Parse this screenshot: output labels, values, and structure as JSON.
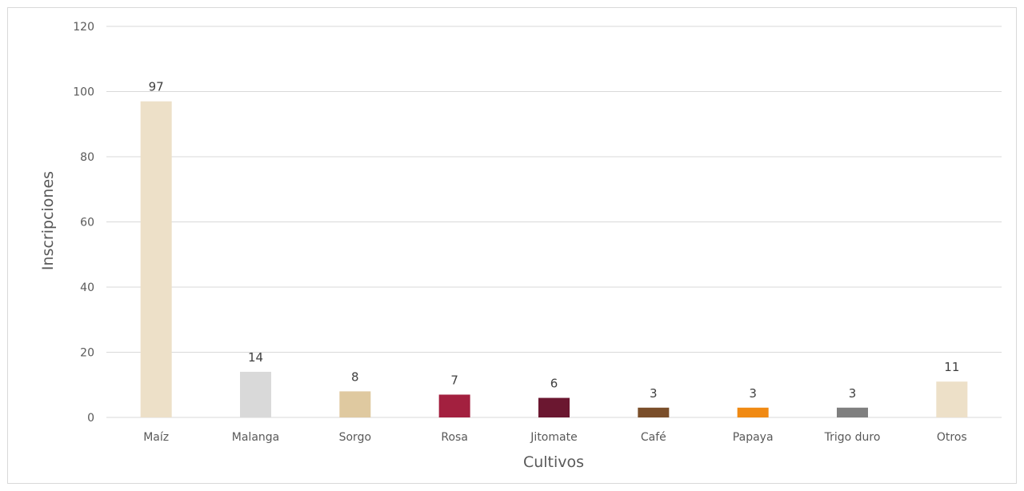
{
  "chart_data": {
    "type": "bar",
    "xlabel": "Cultivos",
    "ylabel": "Inscripciones",
    "ylim": [
      0,
      120
    ],
    "yticks": [
      0,
      20,
      40,
      60,
      80,
      100,
      120
    ],
    "grid": true,
    "categories": [
      "Maíz",
      "Malanga",
      "Sorgo",
      "Rosa",
      "Jitomate",
      "Café",
      "Papaya",
      "Trigo duro",
      "Otros"
    ],
    "values": [
      97,
      14,
      8,
      7,
      6,
      3,
      3,
      3,
      11
    ],
    "colors": [
      "#ede0c8",
      "#d9d9d9",
      "#dfc9a0",
      "#a3203f",
      "#6b1730",
      "#7a4e2a",
      "#f08a13",
      "#7f7f7f",
      "#ede0c8"
    ]
  }
}
